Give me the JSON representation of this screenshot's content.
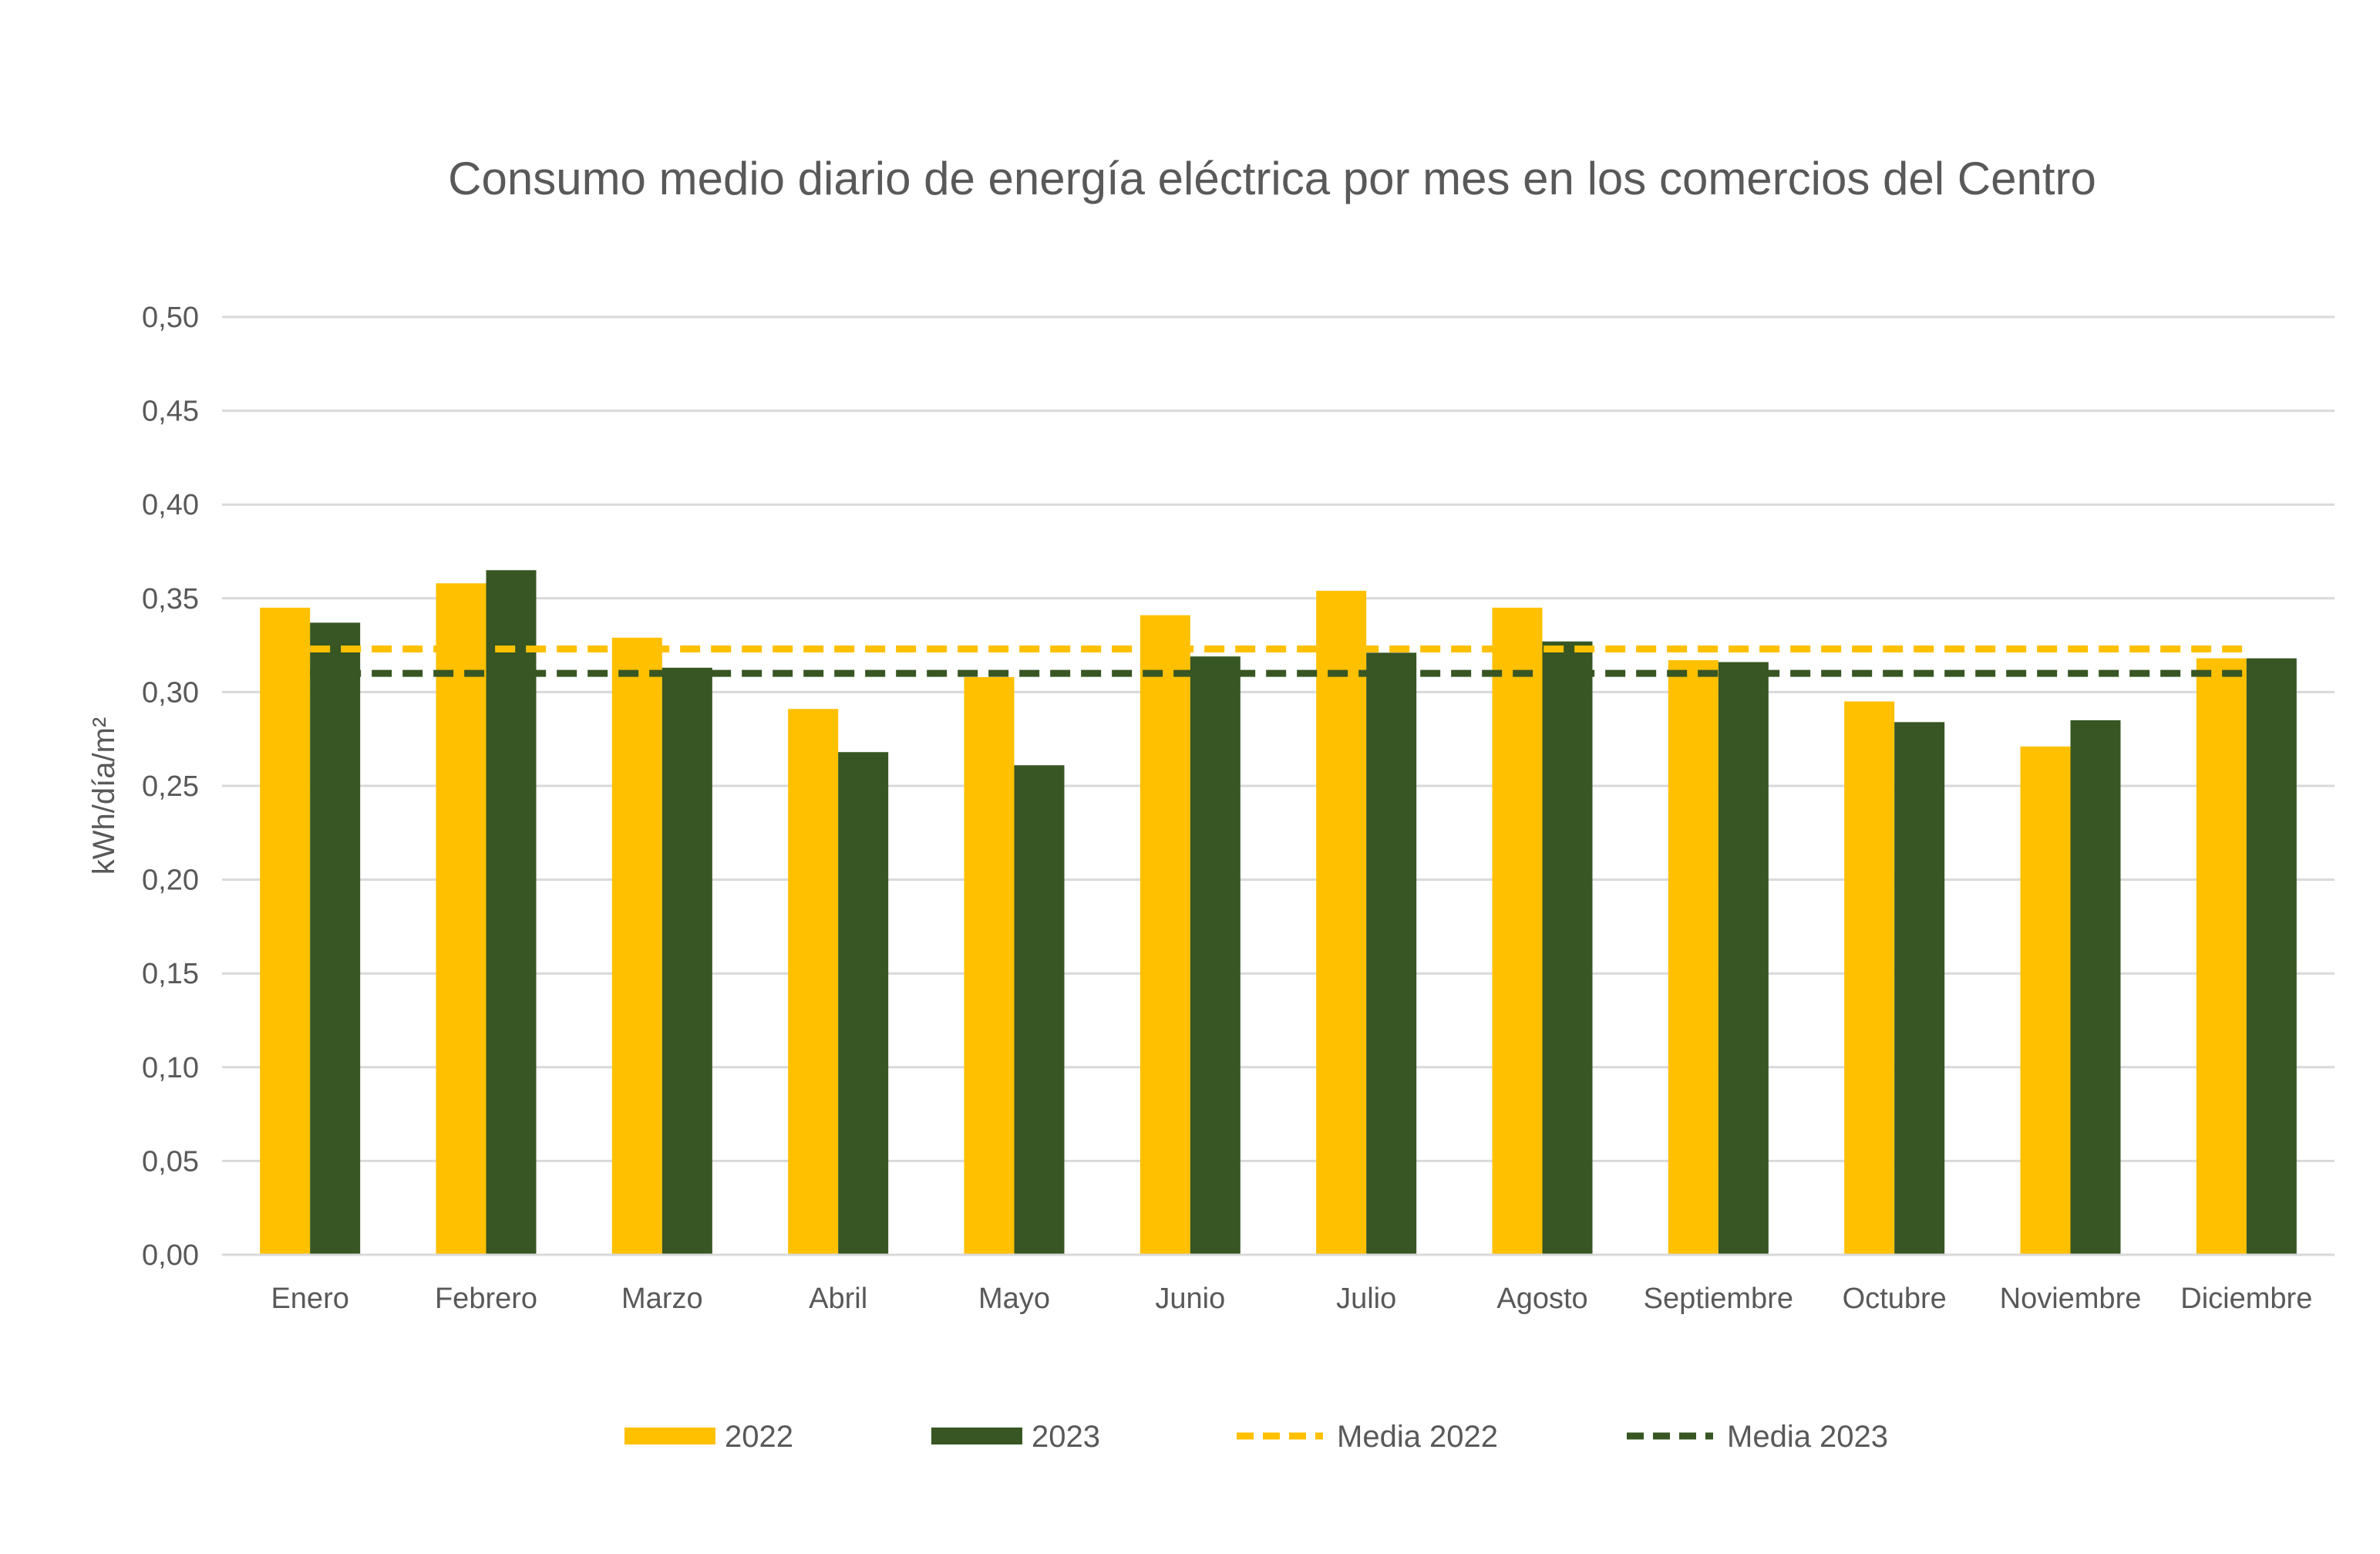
{
  "chart_data": {
    "type": "bar",
    "title": "Consumo medio diario de energía eléctrica por mes en los comercios del Centro",
    "xlabel": "",
    "ylabel": "kWh/día/m²",
    "ylim": [
      0,
      0.5
    ],
    "yticks": [
      "0,00",
      "0,05",
      "0,10",
      "0,15",
      "0,20",
      "0,25",
      "0,30",
      "0,35",
      "0,40",
      "0,45",
      "0,50"
    ],
    "grid": true,
    "legend_position": "bottom",
    "categories": [
      "Enero",
      "Febrero",
      "Marzo",
      "Abril",
      "Mayo",
      "Junio",
      "Julio",
      "Agosto",
      "Septiembre",
      "Octubre",
      "Noviembre",
      "Diciembre"
    ],
    "series": [
      {
        "name": "2022",
        "color": "#FFC000",
        "values": [
          0.345,
          0.358,
          0.329,
          0.291,
          0.308,
          0.341,
          0.354,
          0.345,
          0.317,
          0.295,
          0.271,
          0.318
        ]
      },
      {
        "name": "2023",
        "color": "#375623",
        "values": [
          0.337,
          0.365,
          0.313,
          0.268,
          0.261,
          0.319,
          0.321,
          0.327,
          0.316,
          0.284,
          0.285,
          0.318
        ]
      }
    ],
    "lines": [
      {
        "name": "Media 2022",
        "color": "#FFC000",
        "style": "dashed",
        "value": 0.323
      },
      {
        "name": "Media 2023",
        "color": "#375623",
        "style": "dashed",
        "value": 0.31
      }
    ]
  }
}
